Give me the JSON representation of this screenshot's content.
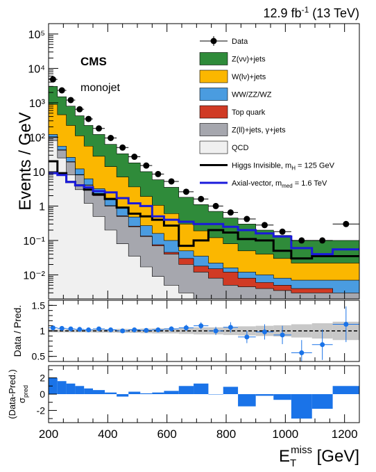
{
  "header": {
    "lumi_value": "12.9",
    "lumi_unit": "fb",
    "lumi_exp": "-1",
    "energy": "(13 TeV)"
  },
  "labels": {
    "experiment": "CMS",
    "category": "monojet"
  },
  "chart_data": [
    {
      "type": "area",
      "panel": "main",
      "stacked": true,
      "ylabel": "Events / GeV",
      "yscale": "log",
      "ylim": [
        0.002,
        200000
      ],
      "yticks": [
        "10⁻²",
        "10⁻¹",
        "1",
        "10",
        "10²",
        "10³",
        "10⁴",
        "10⁵"
      ],
      "xlim": [
        200,
        1250
      ],
      "bin_edges": [
        200,
        230,
        260,
        290,
        320,
        350,
        390,
        430,
        470,
        510,
        550,
        590,
        640,
        690,
        740,
        790,
        840,
        900,
        960,
        1020,
        1090,
        1160,
        1250
      ],
      "legend_position": "top-right",
      "legend": [
        {
          "key": "data",
          "label": "Data",
          "style": "marker",
          "color": "#000000"
        },
        {
          "key": "znunu",
          "label": "Z(νν)+jets",
          "style": "fill",
          "color": "#2f8b3a"
        },
        {
          "key": "wlnu",
          "label": "W(lν)+jets",
          "style": "fill",
          "color": "#fbb700"
        },
        {
          "key": "diboson",
          "label": "WW/ZZ/WZ",
          "style": "fill",
          "color": "#4a9ce0"
        },
        {
          "key": "top",
          "label": "Top quark",
          "style": "fill",
          "color": "#d03a24"
        },
        {
          "key": "zll",
          "label": "Z(ll)+jets, γ+jets",
          "style": "fill",
          "color": "#a6a7ae"
        },
        {
          "key": "qcd",
          "label": "QCD",
          "style": "fill",
          "color": "#f0f0f0"
        },
        {
          "key": "higgs",
          "label": "Higgs Invisible, m",
          "sub": "H",
          "tail": " = 125 GeV",
          "style": "line",
          "color": "#000000"
        },
        {
          "key": "axial",
          "label": "Axial-vector, m",
          "sub": "med",
          "tail": " = 1.6 TeV",
          "style": "line",
          "color": "#1a1adb"
        }
      ],
      "stack_tops": {
        "qcd": [
          80,
          25,
          8,
          3,
          1.2,
          0.5,
          0.2,
          0.08,
          0.035,
          0.017,
          0.009,
          0.005,
          0.003,
          0.002,
          0.002,
          0.002,
          0.002,
          0.002,
          0.002,
          0.002,
          0.002,
          0.002
        ],
        "zll": [
          100,
          42,
          19,
          8,
          4,
          2,
          1,
          0.5,
          0.25,
          0.13,
          0.07,
          0.04,
          0.02,
          0.012,
          0.008,
          0.005,
          0.0045,
          0.004,
          0.0035,
          0.003,
          0.003,
          0.003
        ],
        "top": [
          102,
          43,
          19.5,
          8.2,
          4.1,
          2.05,
          1.03,
          0.52,
          0.26,
          0.135,
          0.075,
          0.045,
          0.03,
          0.018,
          0.015,
          0.012,
          0.008,
          0.006,
          0.005,
          0.004,
          0.004,
          0.003
        ],
        "diboson": [
          120,
          55,
          26,
          12,
          6.2,
          3.2,
          1.7,
          0.9,
          0.48,
          0.27,
          0.16,
          0.1,
          0.05,
          0.035,
          0.022,
          0.016,
          0.012,
          0.01,
          0.008,
          0.007,
          0.007,
          0.007
        ],
        "wlnu": [
          900,
          450,
          220,
          110,
          55,
          28,
          14,
          7,
          3.6,
          1.9,
          1.05,
          0.6,
          0.3,
          0.19,
          0.12,
          0.08,
          0.05,
          0.04,
          0.03,
          0.022,
          0.022,
          0.022
        ],
        "znunu": [
          3000,
          1500,
          800,
          420,
          220,
          120,
          62,
          33,
          18,
          10,
          5.8,
          3.5,
          1.8,
          1.1,
          0.7,
          0.45,
          0.3,
          0.2,
          0.14,
          0.1,
          0.1,
          0.1
        ]
      },
      "data": {
        "bin_centers": [
          215,
          245,
          275,
          305,
          335,
          370,
          410,
          450,
          490,
          530,
          570,
          615,
          665,
          715,
          765,
          815,
          870,
          930,
          990,
          1055,
          1125,
          1205
        ],
        "values": [
          4800,
          2300,
          1200,
          650,
          340,
          180,
          95,
          50,
          27,
          15,
          8.5,
          5.2,
          2.6,
          1.6,
          1.0,
          0.65,
          0.42,
          0.28,
          0.18,
          0.1,
          0.1,
          0.3
        ]
      },
      "signals": {
        "higgs": [
          20,
          9,
          5,
          4,
          3,
          2.2,
          1.6,
          0.9,
          0.6,
          0.5,
          0.4,
          0.27,
          0.07,
          0.1,
          0.2,
          0.17,
          0.11,
          0.1,
          0.05,
          0.03,
          0.035,
          0.035
        ],
        "axial": [
          9,
          8,
          5,
          4,
          3.5,
          2.7,
          2.5,
          1.7,
          1.2,
          1.0,
          0.5,
          0.4,
          0.35,
          0.3,
          0.3,
          0.25,
          0.2,
          0.16,
          0.13,
          0.06,
          0.04,
          0.055
        ]
      }
    },
    {
      "type": "scatter",
      "panel": "ratio",
      "ylabel": "Data / Pred.",
      "ylim": [
        0.4,
        1.6
      ],
      "yticks": [
        0.5,
        1,
        1.5
      ],
      "reference_line": 1,
      "uncertainty_band_halfwidth": [
        0.03,
        0.03,
        0.03,
        0.03,
        0.03,
        0.035,
        0.035,
        0.04,
        0.04,
        0.045,
        0.05,
        0.05,
        0.06,
        0.07,
        0.07,
        0.08,
        0.09,
        0.1,
        0.11,
        0.13,
        0.15,
        0.18
      ],
      "values": [
        1.06,
        1.05,
        1.04,
        1.03,
        1.02,
        1.04,
        1.02,
        1.0,
        1.02,
        1.01,
        1.02,
        1.04,
        1.06,
        1.1,
        1.0,
        1.07,
        0.88,
        0.98,
        0.92,
        0.57,
        0.73,
        1.13
      ],
      "errors": [
        0.01,
        0.01,
        0.01,
        0.01,
        0.015,
        0.015,
        0.02,
        0.02,
        0.03,
        0.03,
        0.04,
        0.05,
        0.06,
        0.07,
        0.08,
        0.1,
        0.12,
        0.15,
        0.18,
        0.25,
        0.3,
        0.35
      ]
    },
    {
      "type": "bar",
      "panel": "pull",
      "ylabel": "(Data-Pred.)",
      "ylabel_sigma": "σ",
      "ylabel_sigma_sub": "pred",
      "xlabel": "E",
      "xlabel_sub": "T",
      "xlabel_sup": "miss",
      "xlabel_unit": " [GeV]",
      "ylim": [
        -3.5,
        3.5
      ],
      "yticks": [
        -2,
        0,
        2
      ],
      "xticks": [
        200,
        400,
        600,
        800,
        1000,
        1200
      ],
      "values": [
        2.0,
        1.6,
        1.3,
        1.0,
        0.7,
        0.5,
        0.2,
        -0.3,
        0.3,
        0.1,
        0.2,
        0.4,
        1.0,
        1.3,
        0.0,
        0.9,
        -1.5,
        -0.2,
        -0.7,
        -3.0,
        -1.8,
        1.0
      ]
    }
  ]
}
